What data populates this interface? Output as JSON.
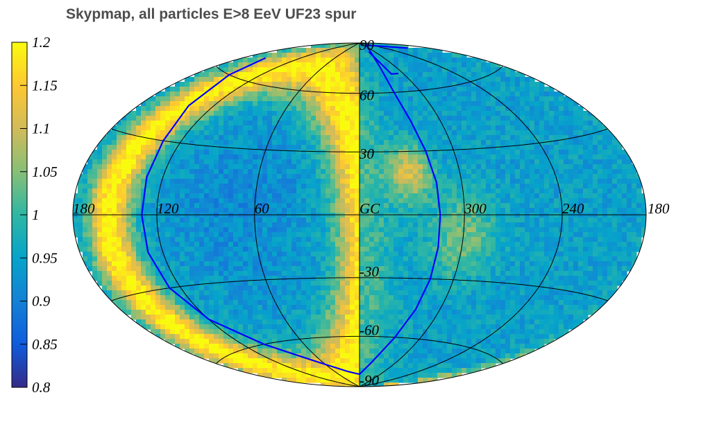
{
  "chart_data": {
    "type": "heatmap",
    "title": "Skypmap, all particles E>8 EeV UF23 spur",
    "projection": "hammer-aitoff",
    "coordinate_system": "galactic",
    "colormap": "parula",
    "colorbar": {
      "range": [
        0.8,
        1.2
      ],
      "ticks": [
        "1.2",
        "1.15",
        "1.1",
        "1.05",
        "1",
        "0.95",
        "0.9",
        "0.85",
        "0.8"
      ]
    },
    "longitude_labels": [
      "180",
      "120",
      "60",
      "GC",
      "300",
      "240",
      "180"
    ],
    "latitude_labels": [
      "90",
      "60",
      "30",
      "-30",
      "-60",
      "-90"
    ],
    "grid": true,
    "features": [
      {
        "description": "bright arc",
        "approx_lon_range": [
          30,
          180
        ],
        "value": 1.2
      },
      {
        "description": "hot spot",
        "approx_lon": 330,
        "approx_lat": 20,
        "value": 1.12
      },
      {
        "description": "warm patch",
        "approx_lon": 305,
        "approx_lat": -10,
        "value": 1.06
      },
      {
        "description": "background",
        "value": 0.95
      }
    ],
    "overlay_curves": [
      {
        "color": "#0000ff",
        "description": "left loop through eastern hemisphere"
      },
      {
        "color": "#0000ff",
        "description": "right loop near lon 320"
      }
    ]
  }
}
